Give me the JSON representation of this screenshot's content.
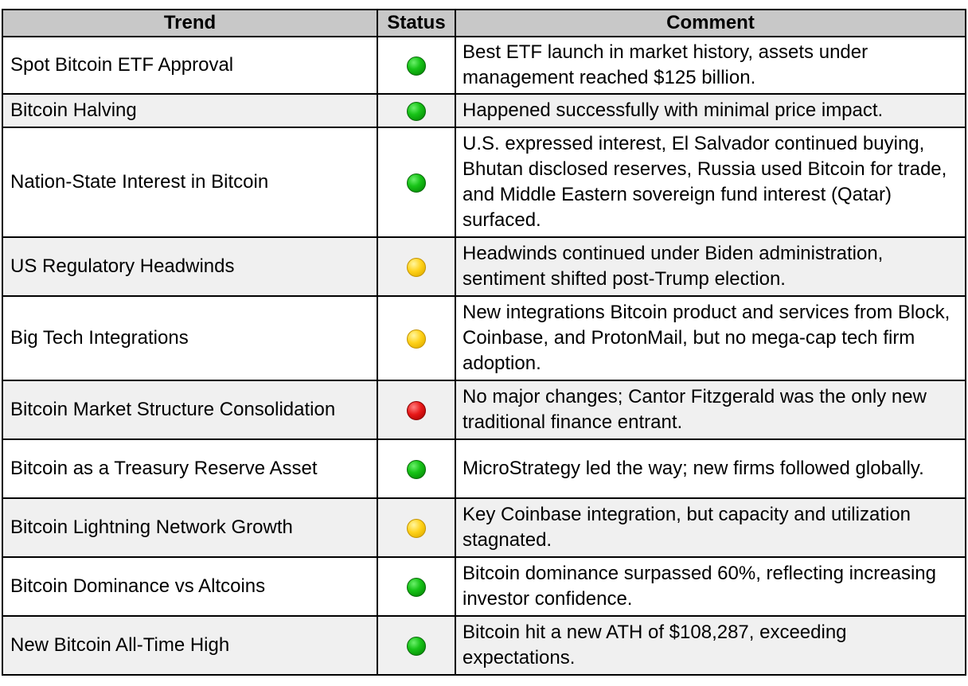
{
  "headers": {
    "trend": "Trend",
    "status": "Status",
    "comment": "Comment"
  },
  "status_colors": {
    "green": "#18c418",
    "yellow": "#ffd21a",
    "red": "#e81818"
  },
  "rows": [
    {
      "trend": "Spot Bitcoin ETF Approval",
      "status": "green",
      "comment": "Best ETF launch in market history, assets under management reached $125 billion."
    },
    {
      "trend": "Bitcoin Halving",
      "status": "green",
      "comment": "Happened successfully with minimal price impact."
    },
    {
      "trend": "Nation-State Interest in Bitcoin",
      "status": "green",
      "comment": "U.S. expressed interest, El Salvador continued buying, Bhutan disclosed reserves, Russia used Bitcoin for trade, and Middle Eastern sovereign fund interest (Qatar) surfaced."
    },
    {
      "trend": "US Regulatory Headwinds",
      "status": "yellow",
      "comment": "Headwinds continued under Biden administration, sentiment shifted post-Trump election."
    },
    {
      "trend": "Big Tech Integrations",
      "status": "yellow",
      "comment": "New integrations Bitcoin product and services from Block, Coinbase, and ProtonMail, but no mega-cap tech firm adoption."
    },
    {
      "trend": "Bitcoin Market Structure Consolidation",
      "status": "red",
      "comment": "No major changes; Cantor Fitzgerald was the only new traditional finance entrant."
    },
    {
      "trend": "Bitcoin as a Treasury Reserve Asset",
      "status": "green",
      "comment": "MicroStrategy led the way; new firms followed globally."
    },
    {
      "trend": "Bitcoin Lightning Network Growth",
      "status": "yellow",
      "comment": "Key Coinbase integration, but capacity and utilization stagnated."
    },
    {
      "trend": "Bitcoin Dominance vs Altcoins",
      "status": "green",
      "comment": "Bitcoin dominance surpassed 60%, reflecting increasing investor confidence."
    },
    {
      "trend": "New Bitcoin All-Time High",
      "status": "green",
      "comment": "Bitcoin hit a new ATH of $108,287, exceeding expectations."
    }
  ]
}
